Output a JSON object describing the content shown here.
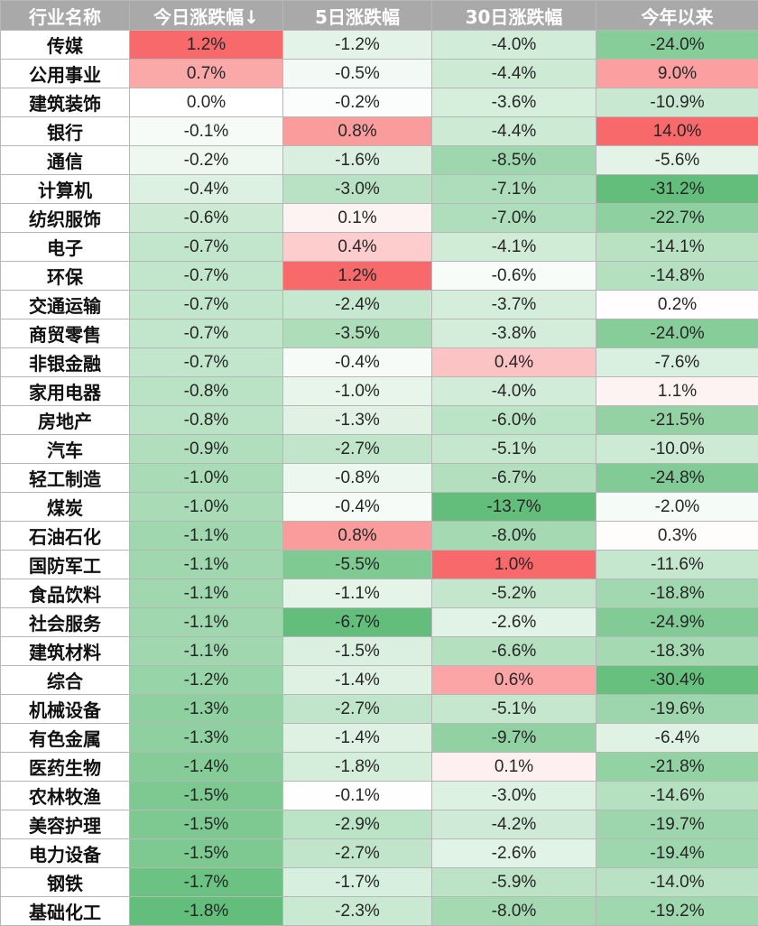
{
  "chart_data": {
    "type": "heatmap",
    "columns": [
      "行业名称",
      "今日涨跌幅↓",
      "5日涨跌幅",
      "30日涨跌幅",
      "今年以来"
    ],
    "unit": "%",
    "colors": {
      "header_bg": "#a9a9a9",
      "header_text": "#ffffff",
      "positive": "#f8696b",
      "negative": "#63be7b",
      "neutral": "#ffffff"
    },
    "rows": [
      {
        "name": "传媒",
        "today": 1.2,
        "d5": -1.2,
        "d30": -4.0,
        "ytd": -24.0
      },
      {
        "name": "公用事业",
        "today": 0.7,
        "d5": -0.5,
        "d30": -4.4,
        "ytd": 9.0
      },
      {
        "name": "建筑装饰",
        "today": 0.0,
        "d5": -0.2,
        "d30": -3.6,
        "ytd": -10.9
      },
      {
        "name": "银行",
        "today": -0.1,
        "d5": 0.8,
        "d30": -4.4,
        "ytd": 14.0
      },
      {
        "name": "通信",
        "today": -0.2,
        "d5": -1.6,
        "d30": -8.5,
        "ytd": -5.6
      },
      {
        "name": "计算机",
        "today": -0.4,
        "d5": -3.0,
        "d30": -7.1,
        "ytd": -31.2
      },
      {
        "name": "纺织服饰",
        "today": -0.6,
        "d5": 0.1,
        "d30": -7.0,
        "ytd": -22.7
      },
      {
        "name": "电子",
        "today": -0.7,
        "d5": 0.4,
        "d30": -4.1,
        "ytd": -14.1
      },
      {
        "name": "环保",
        "today": -0.7,
        "d5": 1.2,
        "d30": -0.6,
        "ytd": -14.8
      },
      {
        "name": "交通运输",
        "today": -0.7,
        "d5": -2.4,
        "d30": -3.7,
        "ytd": 0.2
      },
      {
        "name": "商贸零售",
        "today": -0.7,
        "d5": -3.5,
        "d30": -3.8,
        "ytd": -24.0
      },
      {
        "name": "非银金融",
        "today": -0.7,
        "d5": -0.4,
        "d30": 0.4,
        "ytd": -7.6
      },
      {
        "name": "家用电器",
        "today": -0.8,
        "d5": -1.0,
        "d30": -4.0,
        "ytd": 1.1
      },
      {
        "name": "房地产",
        "today": -0.8,
        "d5": -1.3,
        "d30": -6.0,
        "ytd": -21.5
      },
      {
        "name": "汽车",
        "today": -0.9,
        "d5": -2.7,
        "d30": -5.1,
        "ytd": -10.0
      },
      {
        "name": "轻工制造",
        "today": -1.0,
        "d5": -0.8,
        "d30": -6.7,
        "ytd": -24.8
      },
      {
        "name": "煤炭",
        "today": -1.0,
        "d5": -0.4,
        "d30": -13.7,
        "ytd": -2.0
      },
      {
        "name": "石油石化",
        "today": -1.1,
        "d5": 0.8,
        "d30": -8.0,
        "ytd": 0.3
      },
      {
        "name": "国防军工",
        "today": -1.1,
        "d5": -5.5,
        "d30": 1.0,
        "ytd": -11.6
      },
      {
        "name": "食品饮料",
        "today": -1.1,
        "d5": -1.1,
        "d30": -5.2,
        "ytd": -18.8
      },
      {
        "name": "社会服务",
        "today": -1.1,
        "d5": -6.7,
        "d30": -2.6,
        "ytd": -24.9
      },
      {
        "name": "建筑材料",
        "today": -1.1,
        "d5": -1.5,
        "d30": -6.6,
        "ytd": -18.3
      },
      {
        "name": "综合",
        "today": -1.2,
        "d5": -1.4,
        "d30": 0.6,
        "ytd": -30.4
      },
      {
        "name": "机械设备",
        "today": -1.3,
        "d5": -2.7,
        "d30": -5.1,
        "ytd": -19.6
      },
      {
        "name": "有色金属",
        "today": -1.3,
        "d5": -1.4,
        "d30": -9.7,
        "ytd": -6.4
      },
      {
        "name": "医药生物",
        "today": -1.4,
        "d5": -1.8,
        "d30": 0.1,
        "ytd": -21.8
      },
      {
        "name": "农林牧渔",
        "today": -1.5,
        "d5": -0.1,
        "d30": -3.0,
        "ytd": -14.6
      },
      {
        "name": "美容护理",
        "today": -1.5,
        "d5": -2.9,
        "d30": -4.2,
        "ytd": -19.7
      },
      {
        "name": "电力设备",
        "today": -1.5,
        "d5": -2.7,
        "d30": -2.6,
        "ytd": -19.4
      },
      {
        "name": "钢铁",
        "today": -1.7,
        "d5": -1.7,
        "d30": -5.9,
        "ytd": -14.0
      },
      {
        "name": "基础化工",
        "today": -1.8,
        "d5": -2.3,
        "d30": -8.0,
        "ytd": -19.2
      }
    ]
  }
}
